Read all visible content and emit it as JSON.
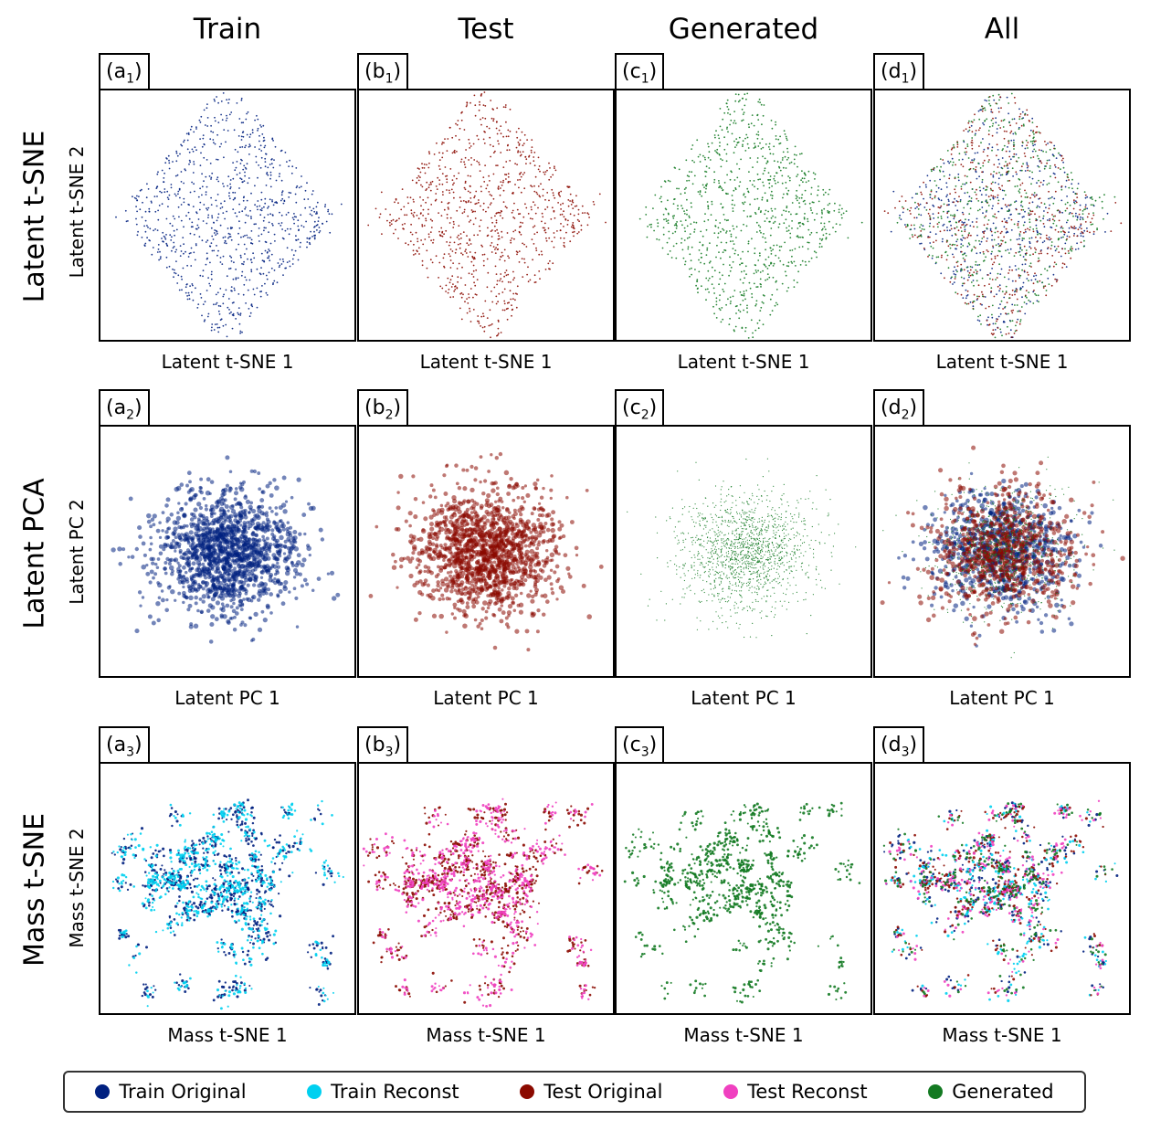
{
  "column_titles": [
    "Train",
    "Test",
    "Generated",
    "All"
  ],
  "row_titles": [
    "Latent t-SNE",
    "Latent PCA",
    "Mass t-SNE"
  ],
  "y_labels": [
    "Latent t-SNE 2",
    "Latent PC 2",
    "Mass t-SNE 2"
  ],
  "x_labels": [
    "Latent t-SNE 1",
    "Latent PC 1",
    "Mass t-SNE 1"
  ],
  "panel_letters": [
    "a",
    "b",
    "c",
    "d"
  ],
  "panel_indices": [
    "1",
    "2",
    "3"
  ],
  "colors": {
    "train_original": "#002080",
    "train_reconst": "#00d0f0",
    "test_original": "#8b0a00",
    "test_reconst": "#f040c0",
    "generated": "#137a22"
  },
  "legend": [
    {
      "label": "Train Original",
      "color": "#002080"
    },
    {
      "label": "Train Reconst",
      "color": "#00d0f0"
    },
    {
      "label": "Test Original",
      "color": "#8b0a00"
    },
    {
      "label": "Test Reconst",
      "color": "#f040c0"
    },
    {
      "label": "Generated",
      "color": "#137a22"
    }
  ],
  "chart_data": [
    {
      "type": "scatter",
      "panel": "a1",
      "title": "Train",
      "xlabel": "Latent t-SNE 1",
      "ylabel": "Latent t-SNE 2",
      "series": [
        "Train Original"
      ],
      "shape": "diamond-cloud",
      "xlim": [
        -1,
        1
      ],
      "ylim": [
        -1,
        1
      ]
    },
    {
      "type": "scatter",
      "panel": "b1",
      "title": "Test",
      "xlabel": "Latent t-SNE 1",
      "ylabel": "Latent t-SNE 2",
      "series": [
        "Test Original"
      ],
      "shape": "diamond-cloud",
      "xlim": [
        -1,
        1
      ],
      "ylim": [
        -1,
        1
      ]
    },
    {
      "type": "scatter",
      "panel": "c1",
      "title": "Generated",
      "xlabel": "Latent t-SNE 1",
      "ylabel": "Latent t-SNE 2",
      "series": [
        "Generated"
      ],
      "shape": "diamond-cloud",
      "xlim": [
        -1,
        1
      ],
      "ylim": [
        -1,
        1
      ]
    },
    {
      "type": "scatter",
      "panel": "d1",
      "title": "All",
      "xlabel": "Latent t-SNE 1",
      "ylabel": "Latent t-SNE 2",
      "series": [
        "Train Original",
        "Test Original",
        "Generated"
      ],
      "shape": "diamond-cloud",
      "xlim": [
        -1,
        1
      ],
      "ylim": [
        -1,
        1
      ]
    },
    {
      "type": "scatter",
      "panel": "a2",
      "title": "Train",
      "xlabel": "Latent PC 1",
      "ylabel": "Latent PC 2",
      "series": [
        "Train Original"
      ],
      "shape": "gaussian-blob",
      "xlim": [
        -1,
        1
      ],
      "ylim": [
        -1,
        1
      ]
    },
    {
      "type": "scatter",
      "panel": "b2",
      "title": "Test",
      "xlabel": "Latent PC 1",
      "ylabel": "Latent PC 2",
      "series": [
        "Test Original"
      ],
      "shape": "gaussian-blob",
      "xlim": [
        -1,
        1
      ],
      "ylim": [
        -1,
        1
      ]
    },
    {
      "type": "scatter",
      "panel": "c2",
      "title": "Generated",
      "xlabel": "Latent PC 1",
      "ylabel": "Latent PC 2",
      "series": [
        "Generated"
      ],
      "shape": "gaussian-blob",
      "xlim": [
        -1,
        1
      ],
      "ylim": [
        -1,
        1
      ]
    },
    {
      "type": "scatter",
      "panel": "d2",
      "title": "All",
      "xlabel": "Latent PC 1",
      "ylabel": "Latent PC 2",
      "series": [
        "Train Original",
        "Test Original",
        "Generated"
      ],
      "shape": "gaussian-blob",
      "xlim": [
        -1,
        1
      ],
      "ylim": [
        -1,
        1
      ]
    },
    {
      "type": "scatter",
      "panel": "a3",
      "title": "Train",
      "xlabel": "Mass t-SNE 1",
      "ylabel": "Mass t-SNE 2",
      "series": [
        "Train Original",
        "Train Reconst"
      ],
      "shape": "clustered",
      "xlim": [
        -1,
        1
      ],
      "ylim": [
        -1,
        1
      ]
    },
    {
      "type": "scatter",
      "panel": "b3",
      "title": "Test",
      "xlabel": "Mass t-SNE 1",
      "ylabel": "Mass t-SNE 2",
      "series": [
        "Test Original",
        "Test Reconst"
      ],
      "shape": "clustered",
      "xlim": [
        -1,
        1
      ],
      "ylim": [
        -1,
        1
      ]
    },
    {
      "type": "scatter",
      "panel": "c3",
      "title": "Generated",
      "xlabel": "Mass t-SNE 1",
      "ylabel": "Mass t-SNE 2",
      "series": [
        "Generated"
      ],
      "shape": "clustered",
      "xlim": [
        -1,
        1
      ],
      "ylim": [
        -1,
        1
      ]
    },
    {
      "type": "scatter",
      "panel": "d3",
      "title": "All",
      "xlabel": "Mass t-SNE 1",
      "ylabel": "Mass t-SNE 2",
      "series": [
        "Train Original",
        "Train Reconst",
        "Test Original",
        "Test Reconst",
        "Generated"
      ],
      "shape": "clustered",
      "xlim": [
        -1,
        1
      ],
      "ylim": [
        -1,
        1
      ]
    }
  ]
}
